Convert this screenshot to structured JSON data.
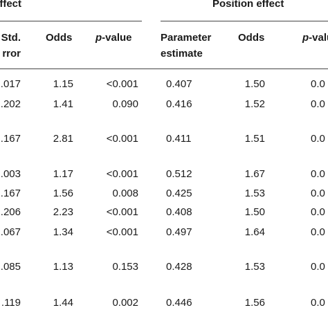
{
  "group_headers": {
    "left": "effect",
    "right": "Position effect"
  },
  "columns": {
    "std_error_line1": "Std.",
    "std_error_line2": "rror",
    "odds_left": "Odds",
    "p_left_italic": "p",
    "p_left_rest": "-value",
    "param_line1": "Parameter",
    "param_line2": "estimate",
    "odds_right": "Odds",
    "p_right_italic": "p",
    "p_right_rest": "-valu"
  },
  "rows": [
    {
      "se": ".017",
      "odds1": "1.15",
      "p1": "<0.001",
      "est": "0.407",
      "odds2": "1.50",
      "p2": "0.0"
    },
    {
      "se": ".202",
      "odds1": "1.41",
      "p1": "0.090",
      "est": "0.416",
      "odds2": "1.52",
      "p2": "0.0"
    },
    {
      "se": ".167",
      "odds1": "2.81",
      "p1": "<0.001",
      "est": "0.411",
      "odds2": "1.51",
      "p2": "0.0"
    },
    {
      "se": ".003",
      "odds1": "1.17",
      "p1": "<0.001",
      "est": "0.512",
      "odds2": "1.67",
      "p2": "0.0"
    },
    {
      "se": ".167",
      "odds1": "1.56",
      "p1": "0.008",
      "est": "0.425",
      "odds2": "1.53",
      "p2": "0.0"
    },
    {
      "se": ".206",
      "odds1": "2.23",
      "p1": "<0.001",
      "est": "0.408",
      "odds2": "1.50",
      "p2": "0.0"
    },
    {
      "se": ".067",
      "odds1": "1.34",
      "p1": "<0.001",
      "est": "0.497",
      "odds2": "1.64",
      "p2": "0.0"
    },
    {
      "se": ".085",
      "odds1": "1.13",
      "p1": "0.153",
      "est": "0.428",
      "odds2": "1.53",
      "p2": "0.0"
    },
    {
      "se": ".119",
      "odds1": "1.44",
      "p1": "0.002",
      "est": "0.446",
      "odds2": "1.56",
      "p2": "0.0"
    }
  ]
}
